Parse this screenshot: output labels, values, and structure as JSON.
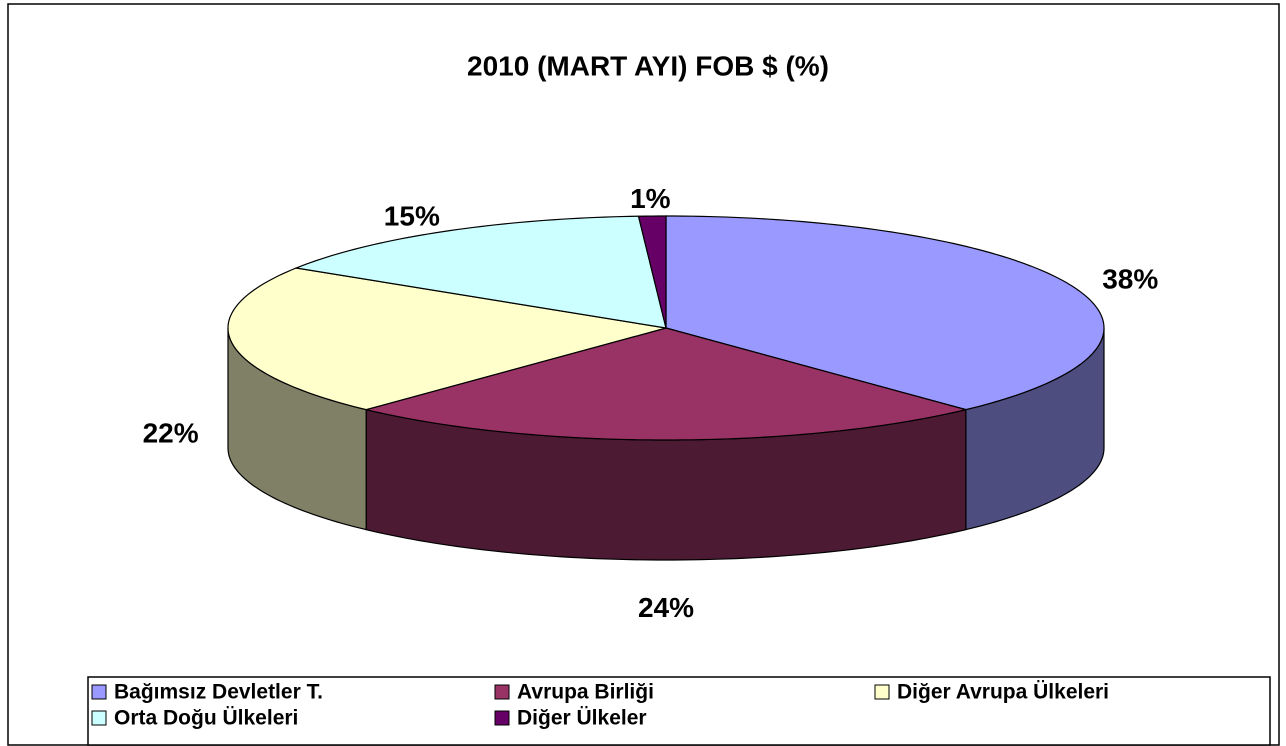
{
  "chart_data": {
    "type": "pie3d",
    "title": "2010 (MART AYI) FOB $ (%)",
    "categories": [
      "Bağımsız Devletler T.",
      "Avrupa Birliği",
      "Diğer Avrupa Ülkeleri",
      "Orta Doğu Ülkeleri",
      "Diğer Ülkeler"
    ],
    "values": [
      38,
      24,
      22,
      15,
      1
    ],
    "value_labels": [
      "38%",
      "24%",
      "22%",
      "15%",
      "1%"
    ],
    "colors": [
      "#9999ff",
      "#993366",
      "#ffffcc",
      "#ccffff",
      "#660066"
    ],
    "legend": "bottom"
  }
}
